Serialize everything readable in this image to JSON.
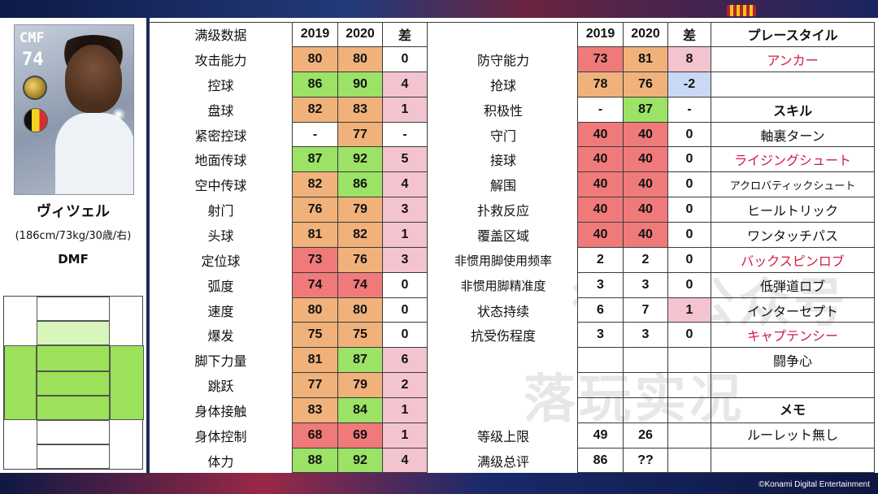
{
  "colors": {
    "orange": "#f0b27a",
    "green": "#9be266",
    "red": "#f07a7a",
    "pink": "#f3c4cf",
    "blue": "#c9d8f5",
    "red_text": "#d11b42"
  },
  "player": {
    "card_position": "CMF",
    "card_rating": "74",
    "name": "ヴィツェル",
    "info": "(186cm/73kg/30歳/右)",
    "play_position": "DMF",
    "nationality_icon": "belgium-flag-icon",
    "medal_icon": "medal-icon"
  },
  "headers": {
    "left_title": "满级数据",
    "year_a": "2019",
    "year_b": "2020",
    "diff": "差",
    "style_title": "プレースタイル",
    "skill_title": "スキル",
    "memo_title": "メモ"
  },
  "left_stats": [
    {
      "label": "攻击能力",
      "v2019": "80",
      "v2020": "80",
      "diff": "0"
    },
    {
      "label": "控球",
      "v2019": "86",
      "v2020": "90",
      "diff": "4"
    },
    {
      "label": "盘球",
      "v2019": "82",
      "v2020": "83",
      "diff": "1"
    },
    {
      "label": "紧密控球",
      "v2019": "-",
      "v2020": "77",
      "diff": "-"
    },
    {
      "label": "地面传球",
      "v2019": "87",
      "v2020": "92",
      "diff": "5"
    },
    {
      "label": "空中传球",
      "v2019": "82",
      "v2020": "86",
      "diff": "4"
    },
    {
      "label": "射门",
      "v2019": "76",
      "v2020": "79",
      "diff": "3"
    },
    {
      "label": "头球",
      "v2019": "81",
      "v2020": "82",
      "diff": "1"
    },
    {
      "label": "定位球",
      "v2019": "73",
      "v2020": "76",
      "diff": "3"
    },
    {
      "label": "弧度",
      "v2019": "74",
      "v2020": "74",
      "diff": "0"
    },
    {
      "label": "速度",
      "v2019": "80",
      "v2020": "80",
      "diff": "0"
    },
    {
      "label": "爆发",
      "v2019": "75",
      "v2020": "75",
      "diff": "0"
    },
    {
      "label": "脚下力量",
      "v2019": "81",
      "v2020": "87",
      "diff": "6"
    },
    {
      "label": "跳跃",
      "v2019": "77",
      "v2020": "79",
      "diff": "2"
    },
    {
      "label": "身体接触",
      "v2019": "83",
      "v2020": "84",
      "diff": "1"
    },
    {
      "label": "身体控制",
      "v2019": "68",
      "v2020": "69",
      "diff": "1"
    },
    {
      "label": "体力",
      "v2019": "88",
      "v2020": "92",
      "diff": "4"
    }
  ],
  "right_stats": [
    {
      "label": "防守能力",
      "v2019": "73",
      "v2020": "81",
      "diff": "8"
    },
    {
      "label": "抢球",
      "v2019": "78",
      "v2020": "76",
      "diff": "-2"
    },
    {
      "label": "积极性",
      "v2019": "-",
      "v2020": "87",
      "diff": "-"
    },
    {
      "label": "守门",
      "v2019": "40",
      "v2020": "40",
      "diff": "0"
    },
    {
      "label": "接球",
      "v2019": "40",
      "v2020": "40",
      "diff": "0"
    },
    {
      "label": "解围",
      "v2019": "40",
      "v2020": "40",
      "diff": "0"
    },
    {
      "label": "扑救反应",
      "v2019": "40",
      "v2020": "40",
      "diff": "0"
    },
    {
      "label": "覆盖区域",
      "v2019": "40",
      "v2020": "40",
      "diff": "0"
    },
    {
      "label": "非惯用脚使用频率",
      "v2019": "2",
      "v2020": "2",
      "diff": "0"
    },
    {
      "label": "非惯用脚精准度",
      "v2019": "3",
      "v2020": "3",
      "diff": "0"
    },
    {
      "label": "状态持续",
      "v2019": "6",
      "v2020": "7",
      "diff": "1"
    },
    {
      "label": "抗受伤程度",
      "v2019": "3",
      "v2020": "3",
      "diff": "0"
    }
  ],
  "bottom_stats": [
    {
      "label": "等级上限",
      "v2019": "49",
      "v2020": "26"
    },
    {
      "label": "满级总评",
      "v2019": "86",
      "v2020": "??"
    }
  ],
  "play_style": "アンカー",
  "skills": [
    {
      "name": "軸裏ターン",
      "highlight": false
    },
    {
      "name": "ライジングシュート",
      "highlight": true
    },
    {
      "name": "アクロバティックシュート",
      "highlight": false
    },
    {
      "name": "ヒールトリック",
      "highlight": false
    },
    {
      "name": "ワンタッチパス",
      "highlight": false
    },
    {
      "name": "バックスピンロブ",
      "highlight": true
    },
    {
      "name": "低弾道ロブ",
      "highlight": false
    },
    {
      "name": "インターセプト",
      "highlight": false
    },
    {
      "name": "キャプテンシー",
      "highlight": true
    },
    {
      "name": "闘争心",
      "highlight": false
    }
  ],
  "memo": "ルーレット無し",
  "watermark_top": "微信公众号",
  "watermark_bottom": "落玩实况",
  "copyright": "©Konami Digital Entertainment",
  "chart_data": {
    "type": "table",
    "categories_left": [
      "攻击能力",
      "控球",
      "盘球",
      "紧密控球",
      "地面传球",
      "空中传球",
      "射门",
      "头球",
      "定位球",
      "弧度",
      "速度",
      "爆发",
      "脚下力量",
      "跳跃",
      "身体接触",
      "身体控制",
      "体力"
    ],
    "series_left": [
      {
        "name": "2019",
        "values": [
          80,
          86,
          82,
          null,
          87,
          82,
          76,
          81,
          73,
          74,
          80,
          75,
          81,
          77,
          83,
          68,
          88
        ]
      },
      {
        "name": "2020",
        "values": [
          80,
          90,
          83,
          77,
          92,
          86,
          79,
          82,
          76,
          74,
          80,
          75,
          87,
          79,
          84,
          69,
          92
        ]
      },
      {
        "name": "差",
        "values": [
          0,
          4,
          1,
          null,
          5,
          4,
          3,
          1,
          3,
          0,
          0,
          0,
          6,
          2,
          1,
          1,
          4
        ]
      }
    ],
    "categories_right": [
      "防守能力",
      "抢球",
      "积极性",
      "守门",
      "接球",
      "解围",
      "扑救反应",
      "覆盖区域",
      "非惯用脚使用频率",
      "非惯用脚精准度",
      "状态持续",
      "抗受伤程度",
      "等级上限",
      "满级总评"
    ],
    "series_right": [
      {
        "name": "2019",
        "values": [
          73,
          78,
          null,
          40,
          40,
          40,
          40,
          40,
          2,
          3,
          6,
          3,
          49,
          86
        ]
      },
      {
        "name": "2020",
        "values": [
          81,
          76,
          87,
          40,
          40,
          40,
          40,
          40,
          2,
          3,
          7,
          3,
          26,
          null
        ]
      },
      {
        "name": "差",
        "values": [
          8,
          -2,
          null,
          0,
          0,
          0,
          0,
          0,
          0,
          0,
          1,
          0,
          null,
          null
        ]
      }
    ]
  }
}
